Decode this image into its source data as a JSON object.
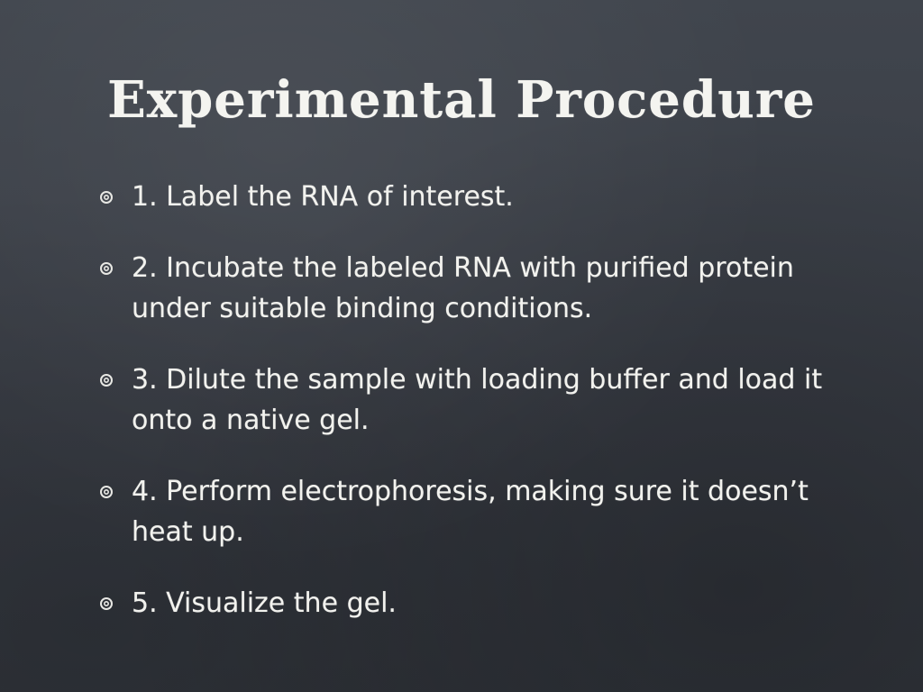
{
  "slide": {
    "title": "Experimental Procedure",
    "bullet_icon": "chalk-spiral-bullet-icon",
    "items": [
      {
        "text": "1. Label the RNA of interest."
      },
      {
        "text": "2. Incubate the labeled RNA with purified protein under suitable binding conditions."
      },
      {
        "text": "3. Dilute the sample with loading buffer and load it onto a native gel."
      },
      {
        "text": "4. Perform electrophoresis, making sure  it doesn’t heat up."
      },
      {
        "text": "5. Visualize the gel."
      }
    ]
  },
  "colors": {
    "background": "#3a3f47",
    "chalk": "#f2f2ee"
  }
}
